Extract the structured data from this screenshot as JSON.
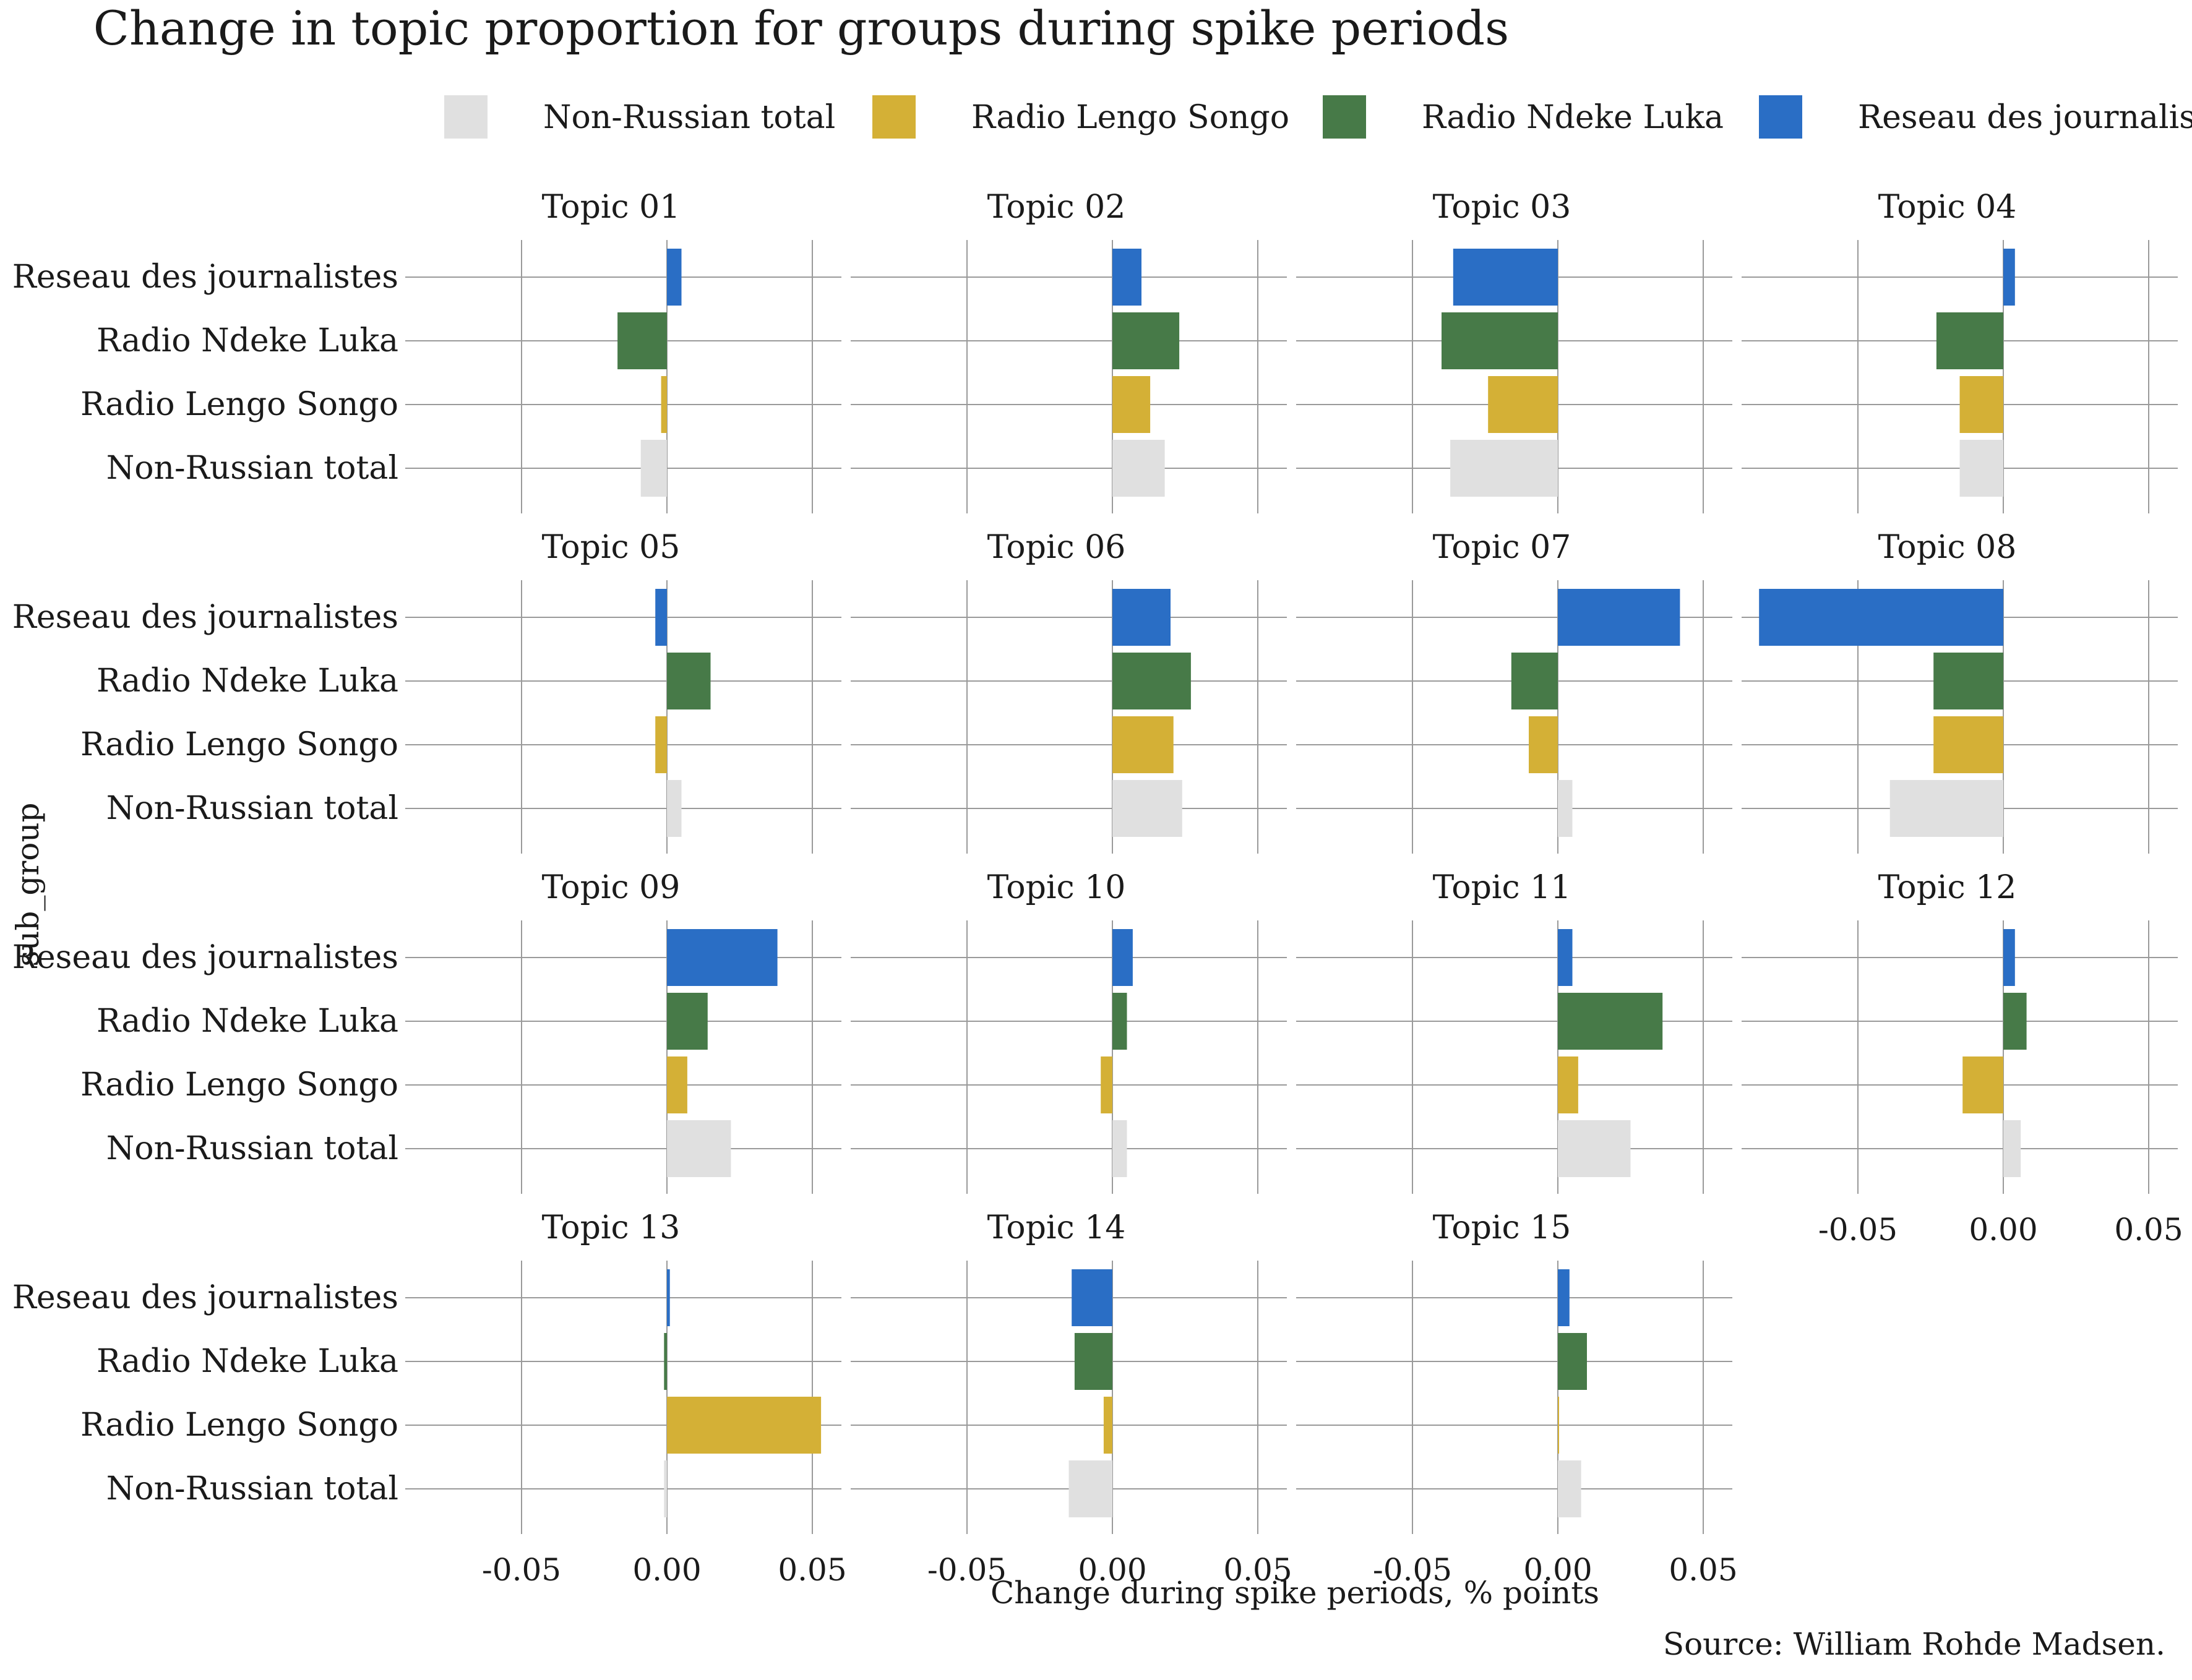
{
  "chart_data": {
    "type": "bar",
    "orientation": "horizontal",
    "faceted": true,
    "title": "Change in topic proportion for groups during spike periods",
    "xlabel": "Change during spike periods, % points",
    "ylabel": "sub_group",
    "caption": "Source: William Rohde Madsen.",
    "xlim": [
      -0.09,
      0.06
    ],
    "xticks": [
      -0.05,
      0.0,
      0.05
    ],
    "xtick_labels": [
      "-0.05",
      "0.00",
      "0.05"
    ],
    "grid": true,
    "legend_position": "top",
    "categories": [
      "Reseau des journalistes",
      "Radio Ndeke Luka",
      "Radio Lengo Songo",
      "Non-Russian total"
    ],
    "series": [
      {
        "name": "Non-Russian total",
        "color": "#e0e0e0"
      },
      {
        "name": "Radio Lengo Songo",
        "color": "#d4b036"
      },
      {
        "name": "Radio Ndeke Luka",
        "color": "#477a48"
      },
      {
        "name": "Reseau des journalistes",
        "color": "#2a6ec5"
      }
    ],
    "facets": [
      {
        "title": "Topic 01",
        "values": {
          "Reseau des journalistes": 0.005,
          "Radio Ndeke Luka": -0.017,
          "Radio Lengo Songo": -0.002,
          "Non-Russian total": -0.009
        }
      },
      {
        "title": "Topic 02",
        "values": {
          "Reseau des journalistes": 0.01,
          "Radio Ndeke Luka": 0.023,
          "Radio Lengo Songo": 0.013,
          "Non-Russian total": 0.018
        }
      },
      {
        "title": "Topic 03",
        "values": {
          "Reseau des journalistes": -0.036,
          "Radio Ndeke Luka": -0.04,
          "Radio Lengo Songo": -0.024,
          "Non-Russian total": -0.037
        }
      },
      {
        "title": "Topic 04",
        "values": {
          "Reseau des journalistes": 0.004,
          "Radio Ndeke Luka": -0.023,
          "Radio Lengo Songo": -0.015,
          "Non-Russian total": -0.015
        }
      },
      {
        "title": "Topic 05",
        "values": {
          "Reseau des journalistes": -0.004,
          "Radio Ndeke Luka": 0.015,
          "Radio Lengo Songo": -0.004,
          "Non-Russian total": 0.005
        }
      },
      {
        "title": "Topic 06",
        "values": {
          "Reseau des journalistes": 0.02,
          "Radio Ndeke Luka": 0.027,
          "Radio Lengo Songo": 0.021,
          "Non-Russian total": 0.024
        }
      },
      {
        "title": "Topic 07",
        "values": {
          "Reseau des journalistes": 0.042,
          "Radio Ndeke Luka": -0.016,
          "Radio Lengo Songo": -0.01,
          "Non-Russian total": 0.005
        }
      },
      {
        "title": "Topic 08",
        "values": {
          "Reseau des journalistes": -0.084,
          "Radio Ndeke Luka": -0.024,
          "Radio Lengo Songo": -0.024,
          "Non-Russian total": -0.039
        }
      },
      {
        "title": "Topic 09",
        "values": {
          "Reseau des journalistes": 0.038,
          "Radio Ndeke Luka": 0.014,
          "Radio Lengo Songo": 0.007,
          "Non-Russian total": 0.022
        }
      },
      {
        "title": "Topic 10",
        "values": {
          "Reseau des journalistes": 0.007,
          "Radio Ndeke Luka": 0.005,
          "Radio Lengo Songo": -0.004,
          "Non-Russian total": 0.005
        }
      },
      {
        "title": "Topic 11",
        "values": {
          "Reseau des journalistes": 0.005,
          "Radio Ndeke Luka": 0.036,
          "Radio Lengo Songo": 0.007,
          "Non-Russian total": 0.025
        }
      },
      {
        "title": "Topic 12",
        "values": {
          "Reseau des journalistes": 0.004,
          "Radio Ndeke Luka": 0.008,
          "Radio Lengo Songo": -0.014,
          "Non-Russian total": 0.006
        }
      },
      {
        "title": "Topic 13",
        "values": {
          "Reseau des journalistes": 0.001,
          "Radio Ndeke Luka": -0.001,
          "Radio Lengo Songo": 0.053,
          "Non-Russian total": -0.001
        }
      },
      {
        "title": "Topic 14",
        "values": {
          "Reseau des journalistes": -0.014,
          "Radio Ndeke Luka": -0.013,
          "Radio Lengo Songo": -0.003,
          "Non-Russian total": -0.015
        }
      },
      {
        "title": "Topic 15",
        "values": {
          "Reseau des journalistes": 0.004,
          "Radio Ndeke Luka": 0.01,
          "Radio Lengo Songo": 0.0,
          "Non-Russian total": 0.008
        }
      }
    ]
  }
}
